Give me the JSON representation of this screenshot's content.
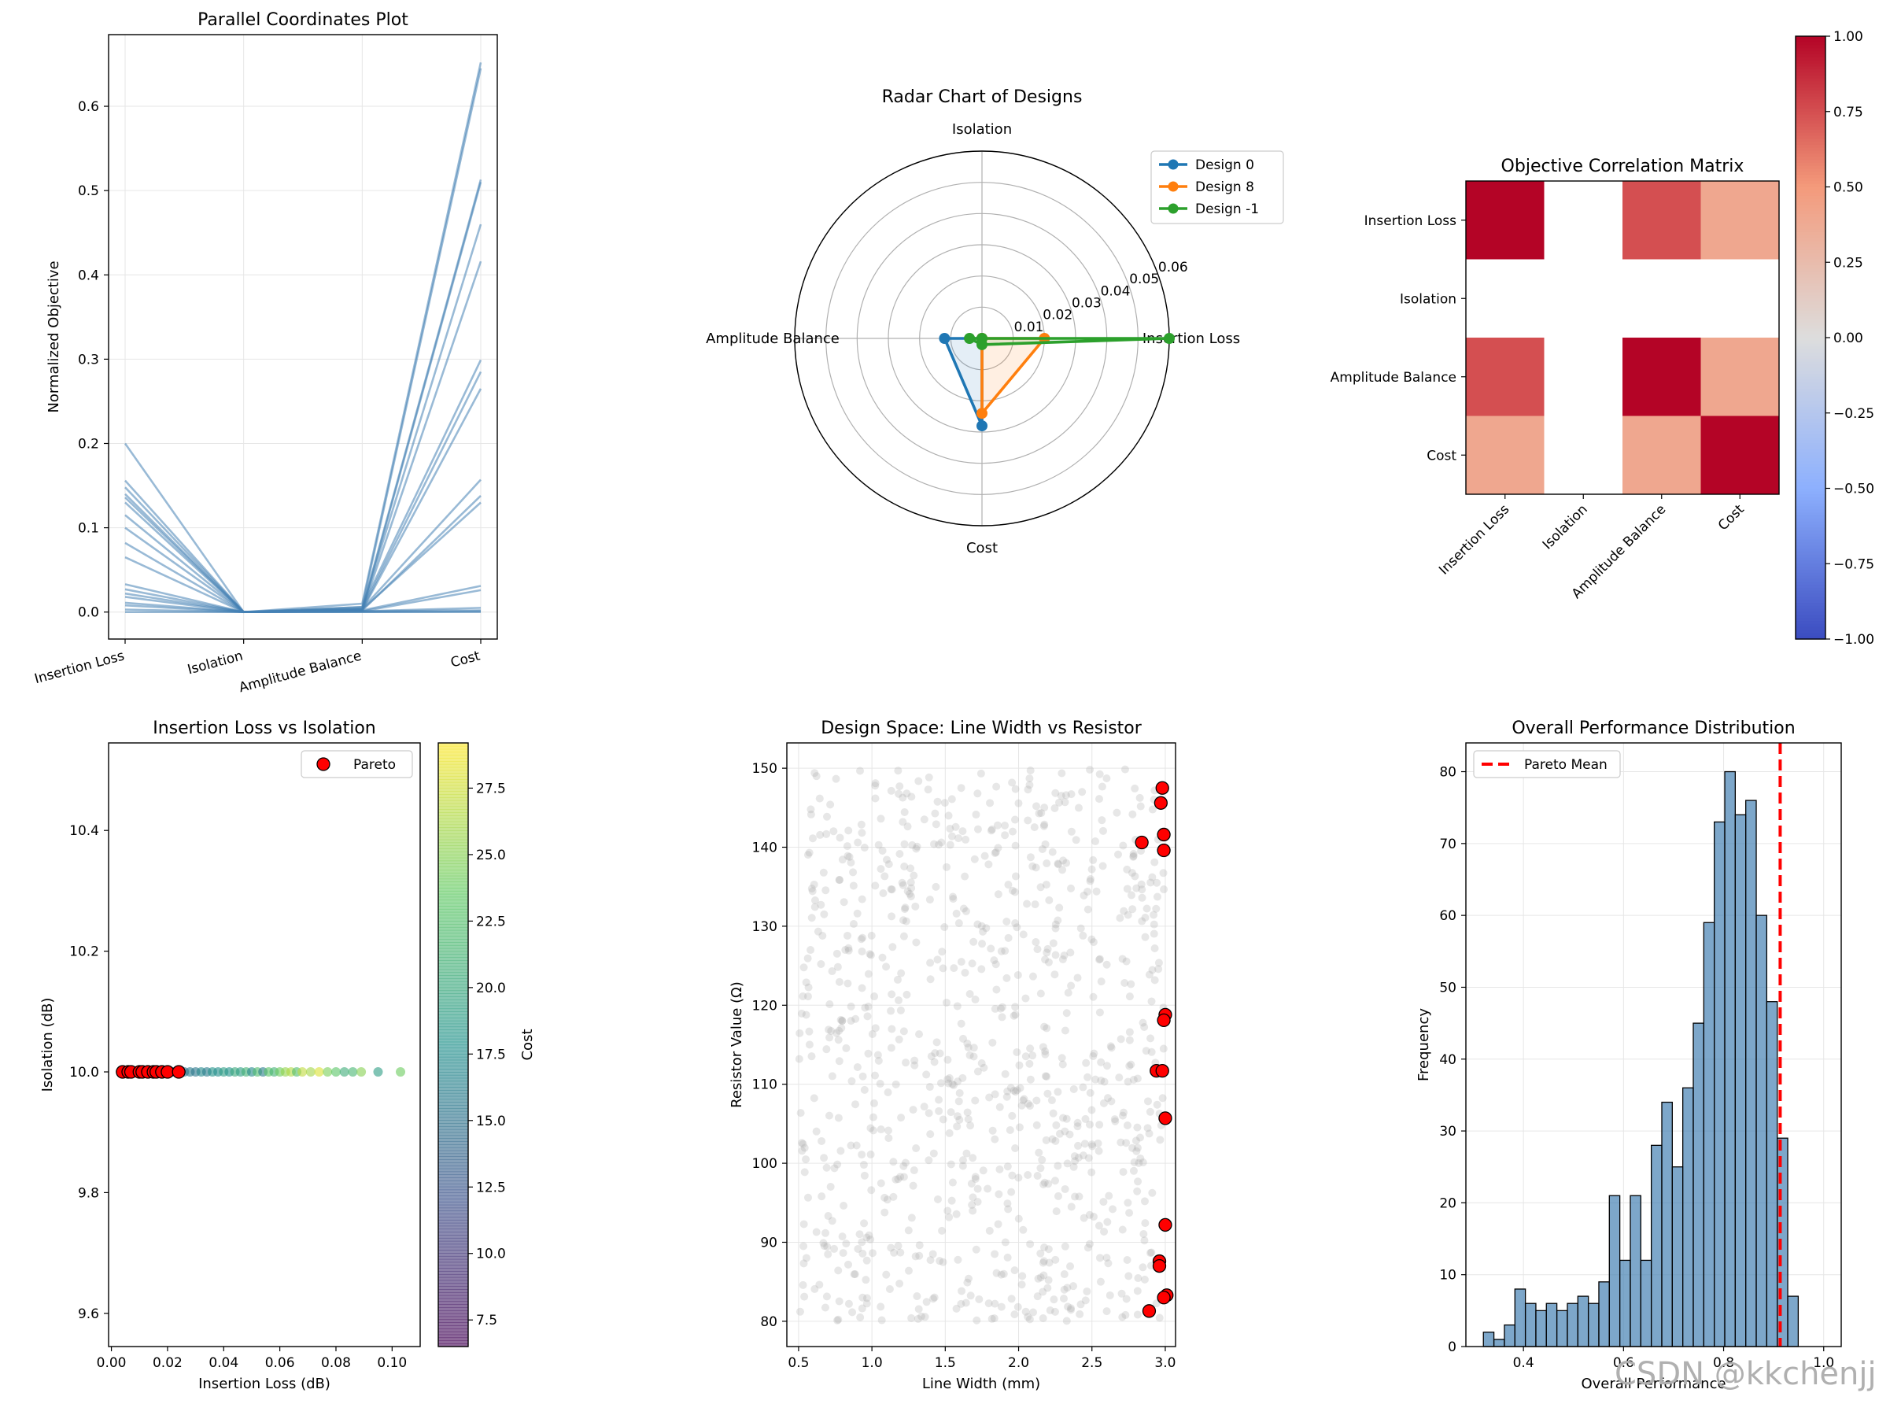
{
  "watermark": "CSDN @kkchenjj",
  "chart_data": [
    {
      "id": "parallel",
      "type": "line",
      "title": "Parallel Coordinates Plot",
      "xlabel": "",
      "ylabel": "Normalized Objective",
      "categories": [
        "Insertion Loss",
        "Isolation",
        "Amplitude Balance",
        "Cost"
      ],
      "ylim": [
        -0.032,
        0.685
      ],
      "yticks": [
        0.0,
        0.1,
        0.2,
        0.3,
        0.4,
        0.5,
        0.6
      ],
      "ytick_labels": [
        "0.0",
        "0.1",
        "0.2",
        "0.3",
        "0.4",
        "0.5",
        "0.6"
      ],
      "grid": true,
      "series": [
        {
          "values": [
            0.2,
            0.0,
            0.01,
            0.652
          ]
        },
        {
          "values": [
            0.156,
            0.0,
            0.006,
            0.645
          ]
        },
        {
          "values": [
            0.148,
            0.0,
            0.004,
            0.513
          ]
        },
        {
          "values": [
            0.14,
            0.0,
            0.002,
            0.51
          ]
        },
        {
          "values": [
            0.136,
            0.0,
            0.004,
            0.46
          ]
        },
        {
          "values": [
            0.13,
            0.0,
            0.002,
            0.416
          ]
        },
        {
          "values": [
            0.115,
            0.0,
            0.006,
            0.299
          ]
        },
        {
          "values": [
            0.1,
            0.0,
            0.003,
            0.285
          ]
        },
        {
          "values": [
            0.082,
            0.0,
            0.002,
            0.265
          ]
        },
        {
          "values": [
            0.065,
            0.0,
            0.004,
            0.157
          ]
        },
        {
          "values": [
            0.033,
            0.0,
            0.002,
            0.138
          ]
        },
        {
          "values": [
            0.027,
            0.0,
            0.003,
            0.13
          ]
        },
        {
          "values": [
            0.022,
            0.0,
            0.002,
            0.031
          ]
        },
        {
          "values": [
            0.018,
            0.0,
            0.001,
            0.026
          ]
        },
        {
          "values": [
            0.011,
            0.0,
            0.001,
            0.005
          ]
        },
        {
          "values": [
            0.008,
            0.0,
            0.001,
            0.002
          ]
        },
        {
          "values": [
            0.003,
            0.0,
            0.0,
            0.001
          ]
        },
        {
          "values": [
            0.0,
            0.0,
            0.0,
            0.0
          ]
        }
      ],
      "color": "#4682b4"
    },
    {
      "id": "radar",
      "type": "radar",
      "title": "Radar Chart of Designs",
      "axes": [
        "Isolation",
        "Amplitude Balance",
        "Cost",
        "Insertion Loss"
      ],
      "rlim": [
        0,
        0.06
      ],
      "rticks": [
        0.01,
        0.02,
        0.03,
        0.04,
        0.05,
        0.06
      ],
      "rtick_labels": [
        "0.01",
        "0.02",
        "0.03",
        "0.04",
        "0.05",
        "0.06"
      ],
      "legend": "top-right",
      "series": [
        {
          "name": "Design 0",
          "color": "#1f77b4",
          "values": {
            "Insertion Loss": 0.0,
            "Isolation": 0.0,
            "Amplitude Balance": 0.012,
            "Cost": 0.028
          }
        },
        {
          "name": "Design 8",
          "color": "#ff7f0e",
          "values": {
            "Insertion Loss": 0.02,
            "Isolation": 0.0,
            "Amplitude Balance": 0.0,
            "Cost": 0.024
          }
        },
        {
          "name": "Design -1",
          "color": "#2ca02c",
          "values": {
            "Insertion Loss": 0.06,
            "Isolation": 0.0,
            "Amplitude Balance": 0.004,
            "Cost": 0.002
          }
        }
      ]
    },
    {
      "id": "corr",
      "type": "heatmap",
      "title": "Objective Correlation Matrix",
      "labels": [
        "Insertion Loss",
        "Isolation",
        "Amplitude Balance",
        "Cost"
      ],
      "matrix": [
        [
          1.0,
          null,
          0.75,
          0.4
        ],
        [
          null,
          null,
          null,
          null
        ],
        [
          0.75,
          null,
          1.0,
          0.4
        ],
        [
          0.4,
          null,
          0.4,
          1.0
        ]
      ],
      "vmin": -1.0,
      "vmax": 1.0,
      "cbar_ticks": [
        1.0,
        0.75,
        0.5,
        0.25,
        0.0,
        -0.25,
        -0.5,
        -0.75,
        -1.0
      ],
      "cbar_tick_labels": [
        "1.00",
        "0.75",
        "0.50",
        "0.25",
        "0.00",
        "−0.25",
        "−0.50",
        "−0.75",
        "−1.00"
      ],
      "colormap": "coolwarm"
    },
    {
      "id": "scatter_il",
      "type": "scatter",
      "title": "Insertion Loss vs Isolation",
      "xlabel": "Insertion Loss (dB)",
      "ylabel": "Isolation (dB)",
      "xlim": [
        -0.001,
        0.11
      ],
      "ylim": [
        9.545,
        10.545
      ],
      "xticks": [
        0.0,
        0.02,
        0.04,
        0.06,
        0.08,
        0.1
      ],
      "xtick_labels": [
        "0.00",
        "0.02",
        "0.04",
        "0.06",
        "0.08",
        "0.10"
      ],
      "yticks": [
        9.6,
        9.8,
        10.0,
        10.2,
        10.4
      ],
      "ytick_labels": [
        "9.6",
        "9.8",
        "10.0",
        "10.2",
        "10.4"
      ],
      "colorbar_label": "Cost",
      "cbar_range": [
        6.5,
        29.2
      ],
      "cbar_ticks": [
        7.5,
        10.0,
        12.5,
        15.0,
        17.5,
        20.0,
        22.5,
        25.0,
        27.5
      ],
      "cbar_tick_labels": [
        "7.5",
        "10.0",
        "12.5",
        "15.0",
        "17.5",
        "20.0",
        "22.5",
        "25.0",
        "27.5"
      ],
      "legend": "top-right",
      "all_points": [
        {
          "x": 0.006,
          "y": 10.0,
          "c": 10.5
        },
        {
          "x": 0.008,
          "y": 10.0,
          "c": 9.0
        },
        {
          "x": 0.01,
          "y": 10.0,
          "c": 11.0
        },
        {
          "x": 0.012,
          "y": 10.0,
          "c": 12.0
        },
        {
          "x": 0.014,
          "y": 10.0,
          "c": 11.5
        },
        {
          "x": 0.016,
          "y": 10.0,
          "c": 13.0
        },
        {
          "x": 0.018,
          "y": 10.0,
          "c": 12.5
        },
        {
          "x": 0.02,
          "y": 10.0,
          "c": 14.0
        },
        {
          "x": 0.022,
          "y": 10.0,
          "c": 13.5
        },
        {
          "x": 0.024,
          "y": 10.0,
          "c": 15.0
        },
        {
          "x": 0.026,
          "y": 10.0,
          "c": 14.5
        },
        {
          "x": 0.028,
          "y": 10.0,
          "c": 16.0
        },
        {
          "x": 0.03,
          "y": 10.0,
          "c": 15.5
        },
        {
          "x": 0.032,
          "y": 10.0,
          "c": 17.0
        },
        {
          "x": 0.034,
          "y": 10.0,
          "c": 16.0
        },
        {
          "x": 0.036,
          "y": 10.0,
          "c": 18.0
        },
        {
          "x": 0.038,
          "y": 10.0,
          "c": 17.5
        },
        {
          "x": 0.04,
          "y": 10.0,
          "c": 19.0
        },
        {
          "x": 0.042,
          "y": 10.0,
          "c": 18.0
        },
        {
          "x": 0.044,
          "y": 10.0,
          "c": 20.0
        },
        {
          "x": 0.046,
          "y": 10.0,
          "c": 19.0
        },
        {
          "x": 0.048,
          "y": 10.0,
          "c": 21.0
        },
        {
          "x": 0.05,
          "y": 10.0,
          "c": 17.0
        },
        {
          "x": 0.052,
          "y": 10.0,
          "c": 22.0
        },
        {
          "x": 0.054,
          "y": 10.0,
          "c": 16.0
        },
        {
          "x": 0.056,
          "y": 10.0,
          "c": 23.0
        },
        {
          "x": 0.058,
          "y": 10.0,
          "c": 21.0
        },
        {
          "x": 0.06,
          "y": 10.0,
          "c": 24.0
        },
        {
          "x": 0.062,
          "y": 10.0,
          "c": 25.5
        },
        {
          "x": 0.064,
          "y": 10.0,
          "c": 26.5
        },
        {
          "x": 0.066,
          "y": 10.0,
          "c": 22.0
        },
        {
          "x": 0.068,
          "y": 10.0,
          "c": 27.0
        },
        {
          "x": 0.071,
          "y": 10.0,
          "c": 26.0
        },
        {
          "x": 0.074,
          "y": 10.0,
          "c": 28.0
        },
        {
          "x": 0.077,
          "y": 10.0,
          "c": 24.5
        },
        {
          "x": 0.08,
          "y": 10.0,
          "c": 23.0
        },
        {
          "x": 0.083,
          "y": 10.0,
          "c": 20.5
        },
        {
          "x": 0.086,
          "y": 10.0,
          "c": 21.5
        },
        {
          "x": 0.089,
          "y": 10.0,
          "c": 25.0
        },
        {
          "x": 0.095,
          "y": 10.0,
          "c": 19.0
        },
        {
          "x": 0.103,
          "y": 10.0,
          "c": 24.0
        }
      ],
      "pareto_label": "Pareto",
      "pareto_points": [
        {
          "x": 0.004,
          "y": 10.0
        },
        {
          "x": 0.006,
          "y": 10.0
        },
        {
          "x": 0.007,
          "y": 10.0
        },
        {
          "x": 0.01,
          "y": 10.0
        },
        {
          "x": 0.011,
          "y": 10.0
        },
        {
          "x": 0.013,
          "y": 10.0
        },
        {
          "x": 0.015,
          "y": 10.0
        },
        {
          "x": 0.016,
          "y": 10.0
        },
        {
          "x": 0.018,
          "y": 10.0
        },
        {
          "x": 0.02,
          "y": 10.0
        },
        {
          "x": 0.024,
          "y": 10.0
        }
      ]
    },
    {
      "id": "design_space",
      "type": "scatter",
      "title": "Design Space: Line Width vs Resistor",
      "xlabel": "Line Width (mm)",
      "ylabel": "Resistor Value (Ω)",
      "xlim": [
        0.42,
        3.07
      ],
      "ylim": [
        76.8,
        153.2
      ],
      "xticks": [
        0.5,
        1.0,
        1.5,
        2.0,
        2.5,
        3.0
      ],
      "xtick_labels": [
        "0.5",
        "1.0",
        "1.5",
        "2.0",
        "2.5",
        "3.0"
      ],
      "yticks": [
        80,
        90,
        100,
        110,
        120,
        130,
        140,
        150
      ],
      "ytick_labels": [
        "80",
        "90",
        "100",
        "110",
        "120",
        "130",
        "140",
        "150"
      ],
      "background_count": 900,
      "background_range": {
        "x": [
          0.5,
          3.0
        ],
        "y": [
          80,
          150
        ]
      },
      "pareto_points": [
        {
          "x": 2.98,
          "y": 147.5
        },
        {
          "x": 2.97,
          "y": 145.6
        },
        {
          "x": 2.84,
          "y": 140.6
        },
        {
          "x": 2.99,
          "y": 141.6
        },
        {
          "x": 2.99,
          "y": 139.6
        },
        {
          "x": 3.0,
          "y": 118.8
        },
        {
          "x": 2.99,
          "y": 118.1
        },
        {
          "x": 2.94,
          "y": 111.7
        },
        {
          "x": 2.98,
          "y": 111.7
        },
        {
          "x": 3.0,
          "y": 105.7
        },
        {
          "x": 3.0,
          "y": 92.2
        },
        {
          "x": 2.96,
          "y": 87.6
        },
        {
          "x": 2.96,
          "y": 87.0
        },
        {
          "x": 3.01,
          "y": 83.3
        },
        {
          "x": 2.99,
          "y": 83.0
        },
        {
          "x": 2.89,
          "y": 81.3
        }
      ]
    },
    {
      "id": "histogram",
      "type": "bar",
      "title": "Overall Performance Distribution",
      "xlabel": "Overall Performance",
      "ylabel": "Frequency",
      "xlim": [
        0.285,
        1.035
      ],
      "ylim": [
        0,
        84
      ],
      "xticks": [
        0.4,
        0.6,
        0.8,
        1.0
      ],
      "xtick_labels": [
        "0.4",
        "0.6",
        "0.8",
        "1.0"
      ],
      "yticks": [
        0,
        10,
        20,
        30,
        40,
        50,
        60,
        70,
        80
      ],
      "ytick_labels": [
        "0",
        "10",
        "20",
        "30",
        "40",
        "50",
        "60",
        "70",
        "80"
      ],
      "bin_start": 0.32,
      "bin_width": 0.02097,
      "values": [
        2,
        1,
        3,
        8,
        6,
        5,
        6,
        5,
        6,
        7,
        6,
        9,
        21,
        12,
        21,
        12,
        28,
        34,
        25,
        36,
        45,
        59,
        73,
        80,
        74,
        76,
        60,
        48,
        29,
        7
      ],
      "mean_line": {
        "label": "Pareto Mean",
        "x": 0.913,
        "color": "#ff0000"
      },
      "legend": "top-left",
      "bar_color": "#4682b4"
    }
  ]
}
